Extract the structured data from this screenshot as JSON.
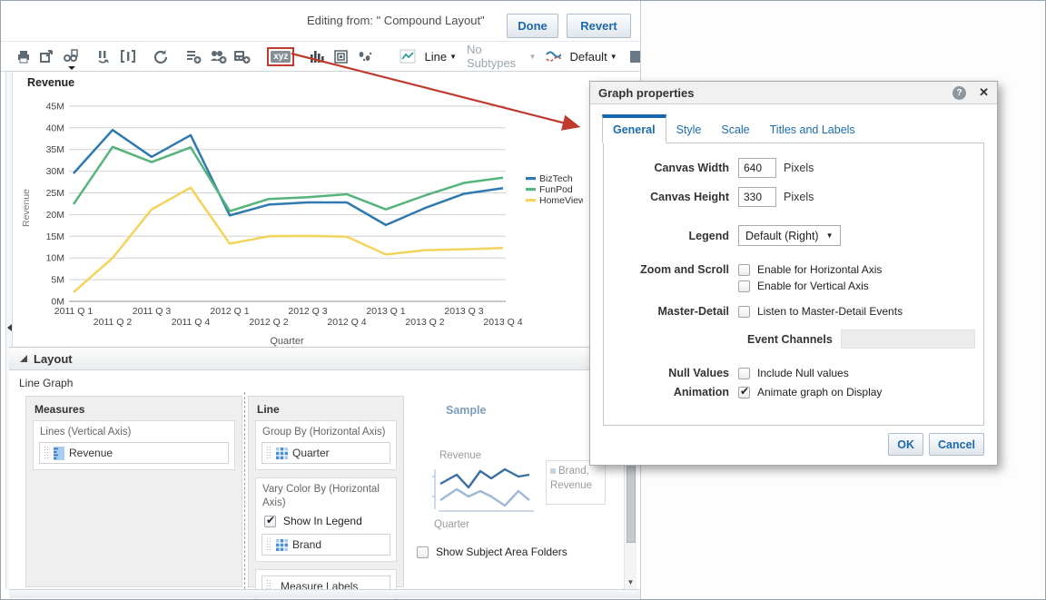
{
  "topbar": {
    "editing_from": "Editing from: \" Compound Layout\"",
    "done": "Done",
    "revert": "Revert"
  },
  "toolbar": {
    "icons": [
      "print",
      "export",
      "preview",
      "show-filters",
      "rename-view",
      "refresh",
      "new-view",
      "new-group",
      "new-calculated-item",
      "xyz-properties",
      "graph-type-bar",
      "view-properties",
      "positions",
      "line-type",
      "style-default"
    ],
    "xyz_label": "xyz",
    "line_type": "Line",
    "subtype": "No Subtypes",
    "style": "Default"
  },
  "colors": {
    "annotation_red": "#bf3b2d",
    "accent_blue": "#1566ad",
    "biztech": "#2e79b0",
    "funpod": "#54b47c",
    "homeview": "#f3d35c"
  },
  "chart": {
    "title": "Revenue"
  },
  "chart_data": {
    "type": "line",
    "title": "Revenue",
    "ylabel": "Revenue",
    "xlabel": "Quarter",
    "ylim": [
      0,
      45
    ],
    "y_tick_step": 5,
    "y_tick_suffix": "M",
    "grid": true,
    "legend_position": "right",
    "categories": [
      "2011 Q 1",
      "2011 Q 2",
      "2011 Q 3",
      "2011 Q 4",
      "2012 Q 1",
      "2012 Q 2",
      "2012 Q 3",
      "2012 Q 4",
      "2013 Q 1",
      "2013 Q 2",
      "2013 Q 3",
      "2013 Q 4"
    ],
    "series": [
      {
        "name": "BizTech",
        "color": "#2e79b0",
        "values": [
          29.5,
          39.5,
          33.3,
          38.3,
          19.8,
          22.3,
          22.8,
          22.8,
          17.6,
          21.5,
          24.8,
          26.1
        ]
      },
      {
        "name": "FunPod",
        "color": "#54b47c",
        "values": [
          22.4,
          35.6,
          32.1,
          35.5,
          20.8,
          23.6,
          24.0,
          24.7,
          21.2,
          24.4,
          27.3,
          28.5
        ]
      },
      {
        "name": "HomeView",
        "color": "#f3d35c",
        "values": [
          2.1,
          10.0,
          21.2,
          26.2,
          13.3,
          15.0,
          15.1,
          14.9,
          10.8,
          11.8,
          12.0,
          12.3
        ]
      }
    ]
  },
  "layout": {
    "header": "Layout",
    "subtitle": "Line Graph",
    "measures": {
      "header": "Measures",
      "drop_zone": "Lines (Vertical Axis)",
      "pill": "Revenue"
    },
    "line": {
      "header": "Line",
      "group_by": "Group By (Horizontal Axis)",
      "group_pill": "Quarter",
      "vary_color": "Vary Color By (Horizontal Axis)",
      "show_in_legend": {
        "label": "Show In Legend",
        "checked": true
      },
      "vary_pill": "Brand",
      "measure_labels_pill": "Measure Labels"
    },
    "sample": {
      "label": "Sample",
      "y_label": "Revenue",
      "x_label": "Quarter",
      "legend_line1": "Brand,",
      "legend_line2": "Revenue"
    },
    "show_subject_area_folders": {
      "label": "Show Subject Area Folders",
      "checked": false
    }
  },
  "dialog": {
    "title": "Graph properties",
    "tabs": [
      {
        "label": "General",
        "active": true
      },
      {
        "label": "Style"
      },
      {
        "label": "Scale"
      },
      {
        "label": "Titles and Labels"
      }
    ],
    "canvas_width": {
      "label": "Canvas Width",
      "value": "640",
      "unit": "Pixels"
    },
    "canvas_height": {
      "label": "Canvas Height",
      "value": "330",
      "unit": "Pixels"
    },
    "legend": {
      "label": "Legend",
      "value": "Default (Right)"
    },
    "zoom_scroll": {
      "label": "Zoom and Scroll",
      "horizontal": {
        "label": "Enable for Horizontal Axis",
        "checked": false
      },
      "vertical": {
        "label": "Enable for Vertical Axis",
        "checked": false
      }
    },
    "master_detail": {
      "label": "Master-Detail",
      "listen": {
        "label": "Listen to Master-Detail Events",
        "checked": false
      },
      "event_channels_label": "Event Channels",
      "event_channels_value": ""
    },
    "null_values": {
      "label": "Null Values",
      "include": {
        "label": "Include Null values",
        "checked": false
      }
    },
    "animation": {
      "label": "Animation",
      "animate": {
        "label": "Animate graph on Display",
        "checked": true
      }
    },
    "ok": "OK",
    "cancel": "Cancel"
  }
}
